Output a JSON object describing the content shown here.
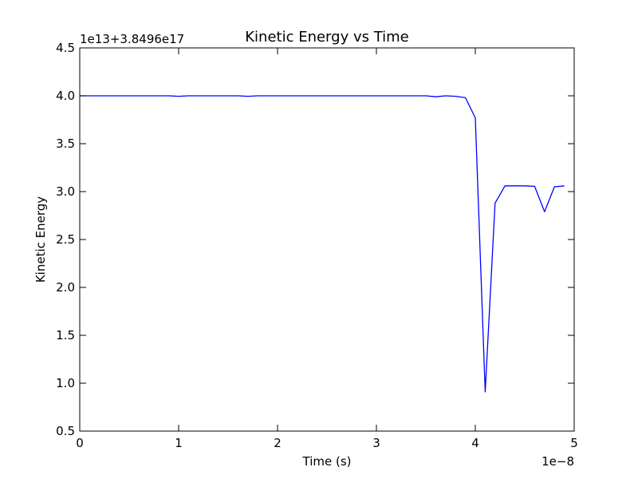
{
  "chart_data": {
    "type": "line",
    "title": "Kinetic Energy vs Time",
    "xlabel": "Time (s)",
    "ylabel": "Kinetic Energy",
    "x_offset_label": "1e−8",
    "y_offset_label": "1e13+3.8496e17",
    "xlim": [
      0,
      5
    ],
    "ylim": [
      0.5,
      4.5
    ],
    "x_ticks": [
      {
        "value": 0,
        "label": "0"
      },
      {
        "value": 1,
        "label": "1"
      },
      {
        "value": 2,
        "label": "2"
      },
      {
        "value": 3,
        "label": "3"
      },
      {
        "value": 4,
        "label": "4"
      },
      {
        "value": 5,
        "label": "5"
      }
    ],
    "y_ticks": [
      {
        "value": 0.5,
        "label": "0.5"
      },
      {
        "value": 1.0,
        "label": "1.0"
      },
      {
        "value": 1.5,
        "label": "1.5"
      },
      {
        "value": 2.0,
        "label": "2.0"
      },
      {
        "value": 2.5,
        "label": "2.5"
      },
      {
        "value": 3.0,
        "label": "3.0"
      },
      {
        "value": 3.5,
        "label": "3.5"
      },
      {
        "value": 4.0,
        "label": "4.0"
      },
      {
        "value": 4.5,
        "label": "4.5"
      }
    ],
    "grid": false,
    "series": [
      {
        "color": "#0000ff",
        "x": [
          0,
          0.1,
          0.2,
          0.3,
          0.4,
          0.5,
          0.6,
          0.7,
          0.8,
          0.9,
          1.0,
          1.1,
          1.2,
          1.3,
          1.4,
          1.5,
          1.6,
          1.7,
          1.8,
          1.9,
          2.0,
          2.1,
          2.2,
          2.3,
          2.4,
          2.5,
          2.6,
          2.7,
          2.8,
          2.9,
          3.0,
          3.1,
          3.2,
          3.3,
          3.4,
          3.5,
          3.6,
          3.7,
          3.8,
          3.9,
          4.0,
          4.1,
          4.2,
          4.3,
          4.4,
          4.5,
          4.6,
          4.7,
          4.8,
          4.9
        ],
        "y": [
          4.0,
          4.0,
          4.0,
          4.0,
          4.0,
          4.0,
          4.0,
          4.0,
          4.0,
          4.0,
          3.995,
          4.0,
          4.0,
          4.0,
          4.0,
          4.0,
          4.0,
          3.995,
          4.0,
          4.0,
          4.0,
          4.0,
          4.0,
          4.0,
          4.0,
          4.0,
          4.0,
          4.0,
          4.0,
          4.0,
          4.0,
          4.0,
          4.0,
          4.0,
          4.0,
          4.0,
          3.99,
          4.0,
          3.995,
          3.98,
          3.77,
          0.91,
          2.88,
          3.06,
          3.06,
          3.06,
          3.055,
          2.79,
          3.05,
          3.06
        ]
      }
    ]
  }
}
